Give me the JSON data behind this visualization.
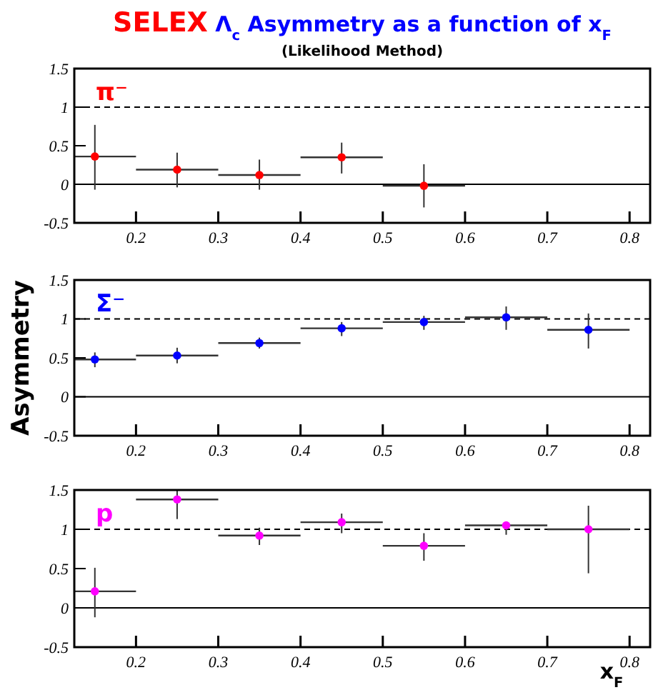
{
  "chart_data": [
    {
      "type": "scatter",
      "title": "SELEX Λ$_{c}$ Asymmetry as a function of x$_{F}$",
      "subtitle": "(Likelihood Method)",
      "x": [
        0.15,
        0.25,
        0.35,
        0.45,
        0.55
      ],
      "xlim": [
        0.125,
        0.825
      ],
      "xticks": [
        0.2,
        0.3,
        0.4,
        0.5,
        0.6,
        0.7,
        0.8
      ],
      "ylim": [
        -0.5,
        1.5
      ],
      "yticks": [
        -0.5,
        0,
        0.5,
        1,
        1.5
      ],
      "marker": "circle",
      "grid": false,
      "series": [
        {
          "name": "π⁻",
          "color": "#ff0000",
          "values": [
            0.36,
            0.19,
            0.12,
            0.35,
            -0.02
          ],
          "errors": [
            [
              -0.07,
              0.77
            ],
            [
              -0.04,
              0.41
            ],
            [
              -0.07,
              0.32
            ],
            [
              0.14,
              0.54
            ],
            [
              -0.3,
              0.26
            ]
          ],
          "xerrors": [
            [
              0.125,
              0.2
            ],
            0.05,
            0.05,
            0.05,
            0.05
          ]
        }
      ],
      "ref_lines": [
        {
          "axis": "y",
          "value": 1,
          "line_style": "dashed"
        },
        {
          "axis": "y",
          "value": 0,
          "line_style": "solid"
        }
      ]
    },
    {
      "type": "scatter",
      "ylabel": "Asymmetry",
      "x": [
        0.15,
        0.25,
        0.35,
        0.45,
        0.55,
        0.65,
        0.75
      ],
      "xlim": [
        0.125,
        0.825
      ],
      "xticks": [
        0.2,
        0.3,
        0.4,
        0.5,
        0.6,
        0.7,
        0.8
      ],
      "ylim": [
        -0.5,
        1.5
      ],
      "yticks": [
        -0.5,
        0,
        0.5,
        1,
        1.5
      ],
      "marker": "circle",
      "grid": false,
      "series": [
        {
          "name": "Σ⁻",
          "color": "#0000ff",
          "values": [
            0.48,
            0.53,
            0.69,
            0.88,
            0.96,
            1.02,
            0.86
          ],
          "errors": [
            [
              0.38,
              0.57
            ],
            [
              0.43,
              0.63
            ],
            [
              0.62,
              0.76
            ],
            [
              0.78,
              0.96
            ],
            [
              0.86,
              1.04
            ],
            [
              0.86,
              1.16
            ],
            [
              0.62,
              1.07
            ]
          ],
          "xerrors": [
            [
              0.125,
              0.2
            ],
            0.05,
            0.05,
            0.05,
            0.05,
            0.05,
            0.05
          ]
        }
      ],
      "ref_lines": [
        {
          "axis": "y",
          "value": 1,
          "line_style": "dashed"
        },
        {
          "axis": "y",
          "value": 0,
          "line_style": "solid"
        }
      ]
    },
    {
      "type": "scatter",
      "xlabel": "x$_{F}$",
      "x": [
        0.15,
        0.25,
        0.35,
        0.45,
        0.55,
        0.65,
        0.75
      ],
      "xlim": [
        0.125,
        0.825
      ],
      "xticks": [
        0.2,
        0.3,
        0.4,
        0.5,
        0.6,
        0.7,
        0.8
      ],
      "ylim": [
        -0.5,
        1.5
      ],
      "yticks": [
        -0.5,
        0,
        0.5,
        1,
        1.5
      ],
      "marker": "circle",
      "grid": false,
      "series": [
        {
          "name": "p",
          "color": "#ff00ff",
          "values": [
            0.21,
            1.38,
            0.92,
            1.09,
            0.79,
            1.05,
            1.0
          ],
          "errors": [
            [
              -0.12,
              0.51
            ],
            [
              1.13,
              1.5
            ],
            [
              0.8,
              1.02
            ],
            [
              0.95,
              1.2
            ],
            [
              0.6,
              0.95
            ],
            [
              0.93,
              1.1
            ],
            [
              0.44,
              1.3
            ]
          ],
          "xerrors": [
            [
              0.125,
              0.2
            ],
            0.05,
            0.05,
            0.05,
            0.05,
            0.05,
            0.05
          ]
        }
      ],
      "ref_lines": [
        {
          "axis": "y",
          "value": 1,
          "line_style": "dashed"
        },
        {
          "axis": "y",
          "value": 0,
          "line_style": "solid"
        }
      ]
    }
  ]
}
